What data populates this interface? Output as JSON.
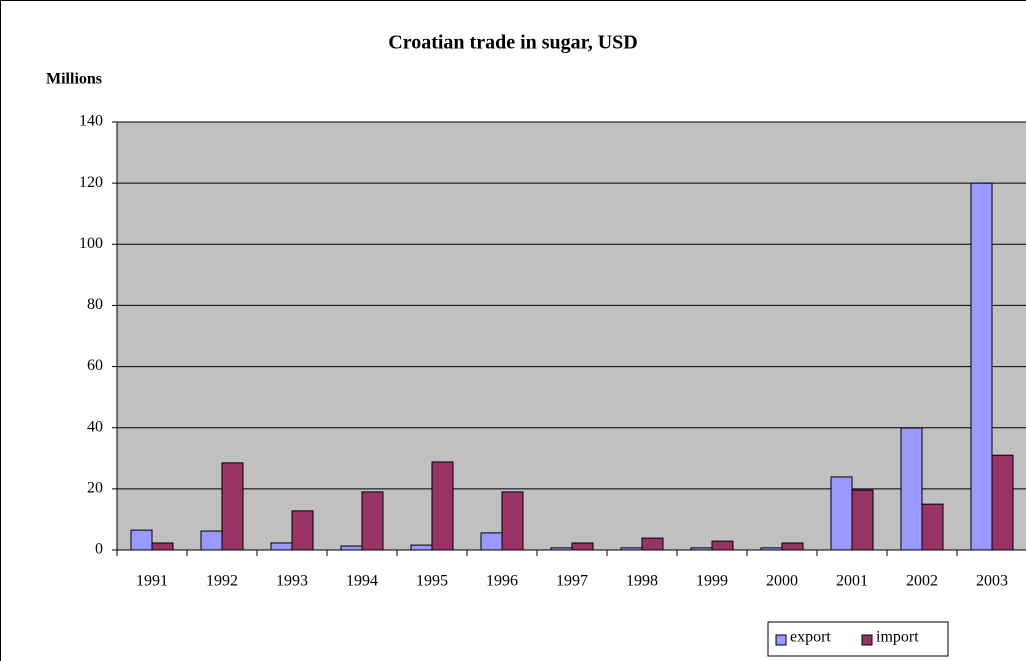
{
  "chart_data": {
    "type": "bar",
    "title": "Croatian trade in sugar, USD",
    "y_label": "Millions",
    "categories": [
      "1991",
      "1992",
      "1993",
      "1994",
      "1995",
      "1996",
      "1997",
      "1998",
      "1999",
      "2000",
      "2001",
      "2002",
      "2003"
    ],
    "series": [
      {
        "name": "export",
        "color": "#9999ff",
        "values": [
          6.5,
          6.2,
          2.3,
          1.3,
          1.6,
          5.6,
          0.7,
          0.7,
          0.7,
          0.7,
          23.9,
          39.9,
          120
        ]
      },
      {
        "name": "import",
        "color": "#993366",
        "values": [
          2.3,
          28.5,
          12.8,
          19,
          28.8,
          19,
          2.3,
          3.9,
          2.9,
          2.3,
          19.6,
          15,
          31
        ]
      }
    ],
    "ylim": [
      0,
      140
    ],
    "yticks": [
      0,
      20,
      40,
      60,
      80,
      100,
      120,
      140
    ],
    "grid": true,
    "legend": "bottom-right",
    "plot_background": "#c0c0c0"
  }
}
